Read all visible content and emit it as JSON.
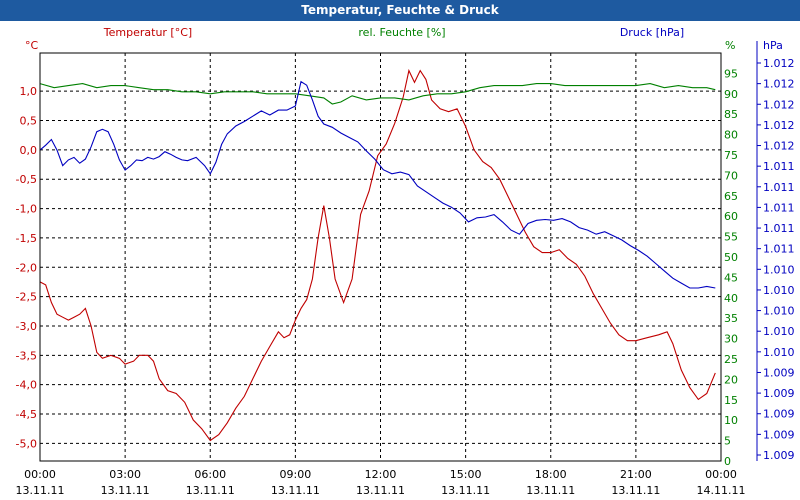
{
  "window": {
    "title": "Temperatur, Feuchte & Druck"
  },
  "colors": {
    "temperature": "#c00000",
    "humidity": "#008000",
    "pressure": "#0000c0",
    "title_bar": "#1e5aa0",
    "grid": "#000000"
  },
  "chart_data": {
    "type": "line",
    "title": "Temperatur, Feuchte & Druck",
    "legend": [
      {
        "name": "Temperatur [°C]",
        "axis": "left"
      },
      {
        "name": "rel. Feuchte [%]",
        "axis": "right-inner"
      },
      {
        "name": "Druck [hPa]",
        "axis": "right-outer"
      }
    ],
    "x_ticks": [
      {
        "time": "00:00",
        "date": "13.11.11",
        "hour": 0
      },
      {
        "time": "03:00",
        "date": "13.11.11",
        "hour": 3
      },
      {
        "time": "06:00",
        "date": "13.11.11",
        "hour": 6
      },
      {
        "time": "09:00",
        "date": "13.11.11",
        "hour": 9
      },
      {
        "time": "12:00",
        "date": "13.11.11",
        "hour": 12
      },
      {
        "time": "15:00",
        "date": "13.11.11",
        "hour": 15
      },
      {
        "time": "18:00",
        "date": "13.11.11",
        "hour": 18
      },
      {
        "time": "21:00",
        "date": "13.11.11",
        "hour": 21
      },
      {
        "time": "00:00",
        "date": "14.11.11",
        "hour": 24
      }
    ],
    "xlim": [
      0,
      24
    ],
    "axes": {
      "temperature": {
        "unit": "°C",
        "ylim": [
          -5.3,
          1.65
        ],
        "ticks": [
          "1,0",
          "0,5",
          "0,0",
          "-0,5",
          "-1,0",
          "-1,5",
          "-2,0",
          "-2,5",
          "-3,0",
          "-3,5",
          "-4,0",
          "-4,5",
          "-5,0"
        ],
        "tick_values": [
          1.0,
          0.5,
          0.0,
          -0.5,
          -1.0,
          -1.5,
          -2.0,
          -2.5,
          -3.0,
          -3.5,
          -4.0,
          -4.5,
          -5.0
        ]
      },
      "humidity": {
        "unit": "%",
        "ylim": [
          0,
          100
        ],
        "ticks": [
          "95",
          "90",
          "85",
          "80",
          "75",
          "70",
          "65",
          "60",
          "55",
          "50",
          "45",
          "40",
          "35",
          "30",
          "25",
          "20",
          "15",
          "10",
          "5",
          "0"
        ],
        "tick_values": [
          95,
          90,
          85,
          80,
          75,
          70,
          65,
          60,
          55,
          50,
          45,
          40,
          35,
          30,
          25,
          20,
          15,
          10,
          5,
          0
        ]
      },
      "pressure": {
        "unit": "hPa",
        "ticks": [
          "1.012",
          "1.012",
          "1.012",
          "1.012",
          "1.012",
          "1.011",
          "1.011",
          "1.011",
          "1.011",
          "1.011",
          "1.010",
          "1.010",
          "1.010",
          "1.010",
          "1.010",
          "1.009",
          "1.009",
          "1.009",
          "1.009",
          "1.009"
        ],
        "series_scale": [
          0,
          1
        ]
      }
    },
    "series": [
      {
        "name": "Temperatur [°C]",
        "axis": "temperature",
        "points": [
          [
            0,
            -2.25
          ],
          [
            0.2,
            -2.3
          ],
          [
            0.4,
            -2.6
          ],
          [
            0.6,
            -2.8
          ],
          [
            0.8,
            -2.85
          ],
          [
            1.0,
            -2.9
          ],
          [
            1.2,
            -2.85
          ],
          [
            1.4,
            -2.8
          ],
          [
            1.6,
            -2.7
          ],
          [
            1.8,
            -3.0
          ],
          [
            2.0,
            -3.45
          ],
          [
            2.2,
            -3.55
          ],
          [
            2.5,
            -3.5
          ],
          [
            2.8,
            -3.55
          ],
          [
            3.0,
            -3.65
          ],
          [
            3.3,
            -3.6
          ],
          [
            3.5,
            -3.5
          ],
          [
            3.8,
            -3.5
          ],
          [
            4.0,
            -3.6
          ],
          [
            4.2,
            -3.9
          ],
          [
            4.5,
            -4.1
          ],
          [
            4.8,
            -4.15
          ],
          [
            5.1,
            -4.3
          ],
          [
            5.4,
            -4.6
          ],
          [
            5.7,
            -4.75
          ],
          [
            6.0,
            -4.95
          ],
          [
            6.3,
            -4.85
          ],
          [
            6.6,
            -4.65
          ],
          [
            6.9,
            -4.4
          ],
          [
            7.2,
            -4.2
          ],
          [
            7.5,
            -3.9
          ],
          [
            7.8,
            -3.6
          ],
          [
            8.1,
            -3.35
          ],
          [
            8.4,
            -3.1
          ],
          [
            8.6,
            -3.2
          ],
          [
            8.8,
            -3.15
          ],
          [
            9.0,
            -2.9
          ],
          [
            9.2,
            -2.7
          ],
          [
            9.4,
            -2.55
          ],
          [
            9.6,
            -2.2
          ],
          [
            9.8,
            -1.5
          ],
          [
            10.0,
            -0.95
          ],
          [
            10.2,
            -1.5
          ],
          [
            10.4,
            -2.2
          ],
          [
            10.7,
            -2.6
          ],
          [
            11.0,
            -2.2
          ],
          [
            11.3,
            -1.1
          ],
          [
            11.6,
            -0.7
          ],
          [
            11.9,
            -0.1
          ],
          [
            12.2,
            0.1
          ],
          [
            12.5,
            0.45
          ],
          [
            12.8,
            0.9
          ],
          [
            13.0,
            1.35
          ],
          [
            13.2,
            1.15
          ],
          [
            13.4,
            1.35
          ],
          [
            13.6,
            1.2
          ],
          [
            13.8,
            0.85
          ],
          [
            14.1,
            0.7
          ],
          [
            14.4,
            0.65
          ],
          [
            14.7,
            0.7
          ],
          [
            15.0,
            0.4
          ],
          [
            15.3,
            0.0
          ],
          [
            15.6,
            -0.2
          ],
          [
            15.9,
            -0.3
          ],
          [
            16.2,
            -0.5
          ],
          [
            16.5,
            -0.8
          ],
          [
            16.8,
            -1.1
          ],
          [
            17.1,
            -1.4
          ],
          [
            17.4,
            -1.65
          ],
          [
            17.7,
            -1.75
          ],
          [
            18.0,
            -1.75
          ],
          [
            18.3,
            -1.7
          ],
          [
            18.6,
            -1.85
          ],
          [
            18.9,
            -1.95
          ],
          [
            19.2,
            -2.15
          ],
          [
            19.5,
            -2.45
          ],
          [
            19.8,
            -2.7
          ],
          [
            20.1,
            -2.95
          ],
          [
            20.4,
            -3.15
          ],
          [
            20.7,
            -3.25
          ],
          [
            21.0,
            -3.25
          ],
          [
            21.4,
            -3.2
          ],
          [
            21.8,
            -3.15
          ],
          [
            22.1,
            -3.1
          ],
          [
            22.3,
            -3.3
          ],
          [
            22.6,
            -3.75
          ],
          [
            22.9,
            -4.05
          ],
          [
            23.2,
            -4.25
          ],
          [
            23.5,
            -4.15
          ],
          [
            23.8,
            -3.8
          ]
        ]
      },
      {
        "name": "rel. Feuchte [%]",
        "axis": "humidity",
        "points": [
          [
            0,
            92.5
          ],
          [
            0.5,
            91.5
          ],
          [
            1.0,
            92
          ],
          [
            1.5,
            92.5
          ],
          [
            2.0,
            91.5
          ],
          [
            2.5,
            92
          ],
          [
            3.0,
            92
          ],
          [
            3.5,
            91.5
          ],
          [
            4.0,
            91
          ],
          [
            4.5,
            91
          ],
          [
            5.0,
            90.5
          ],
          [
            5.5,
            90.5
          ],
          [
            6.0,
            90
          ],
          [
            6.5,
            90.5
          ],
          [
            7.0,
            90.5
          ],
          [
            7.5,
            90.5
          ],
          [
            8.0,
            90
          ],
          [
            8.5,
            90
          ],
          [
            9.0,
            90
          ],
          [
            9.5,
            89.5
          ],
          [
            10.0,
            89
          ],
          [
            10.3,
            87.5
          ],
          [
            10.6,
            88
          ],
          [
            11.0,
            89.5
          ],
          [
            11.5,
            88.5
          ],
          [
            12.0,
            89
          ],
          [
            12.5,
            89
          ],
          [
            13.0,
            88.5
          ],
          [
            13.5,
            89.5
          ],
          [
            14.0,
            90
          ],
          [
            14.5,
            90
          ],
          [
            15.0,
            90.5
          ],
          [
            15.5,
            91.5
          ],
          [
            16.0,
            92
          ],
          [
            16.5,
            92
          ],
          [
            17.0,
            92
          ],
          [
            17.5,
            92.5
          ],
          [
            18.0,
            92.5
          ],
          [
            18.5,
            92
          ],
          [
            19.0,
            92
          ],
          [
            19.5,
            92
          ],
          [
            20.0,
            92
          ],
          [
            20.5,
            92
          ],
          [
            21.0,
            92
          ],
          [
            21.5,
            92.5
          ],
          [
            22.0,
            91.5
          ],
          [
            22.5,
            92
          ],
          [
            23.0,
            91.5
          ],
          [
            23.5,
            91.5
          ],
          [
            23.8,
            91
          ]
        ]
      },
      {
        "name": "Druck [hPa]",
        "axis": "pressure",
        "points": [
          [
            0,
            0.762
          ],
          [
            0.2,
            0.774
          ],
          [
            0.4,
            0.788
          ],
          [
            0.6,
            0.762
          ],
          [
            0.8,
            0.724
          ],
          [
            1.0,
            0.738
          ],
          [
            1.2,
            0.744
          ],
          [
            1.4,
            0.73
          ],
          [
            1.6,
            0.74
          ],
          [
            1.8,
            0.77
          ],
          [
            2.0,
            0.807
          ],
          [
            2.2,
            0.813
          ],
          [
            2.4,
            0.807
          ],
          [
            2.6,
            0.776
          ],
          [
            2.8,
            0.738
          ],
          [
            3.0,
            0.713
          ],
          [
            3.2,
            0.724
          ],
          [
            3.4,
            0.738
          ],
          [
            3.6,
            0.736
          ],
          [
            3.8,
            0.744
          ],
          [
            4.0,
            0.74
          ],
          [
            4.2,
            0.746
          ],
          [
            4.4,
            0.758
          ],
          [
            4.6,
            0.752
          ],
          [
            4.8,
            0.744
          ],
          [
            5.0,
            0.738
          ],
          [
            5.2,
            0.736
          ],
          [
            5.5,
            0.744
          ],
          [
            5.8,
            0.724
          ],
          [
            6.0,
            0.704
          ],
          [
            6.2,
            0.732
          ],
          [
            6.4,
            0.776
          ],
          [
            6.6,
            0.802
          ],
          [
            6.9,
            0.821
          ],
          [
            7.2,
            0.832
          ],
          [
            7.5,
            0.845
          ],
          [
            7.8,
            0.858
          ],
          [
            8.1,
            0.848
          ],
          [
            8.4,
            0.86
          ],
          [
            8.7,
            0.86
          ],
          [
            9.0,
            0.87
          ],
          [
            9.2,
            0.93
          ],
          [
            9.4,
            0.921
          ],
          [
            9.6,
            0.885
          ],
          [
            9.8,
            0.845
          ],
          [
            10.0,
            0.826
          ],
          [
            10.3,
            0.818
          ],
          [
            10.6,
            0.804
          ],
          [
            10.9,
            0.793
          ],
          [
            11.2,
            0.782
          ],
          [
            11.5,
            0.76
          ],
          [
            11.8,
            0.74
          ],
          [
            12.1,
            0.714
          ],
          [
            12.4,
            0.704
          ],
          [
            12.7,
            0.708
          ],
          [
            13.0,
            0.702
          ],
          [
            13.3,
            0.674
          ],
          [
            13.6,
            0.66
          ],
          [
            13.9,
            0.646
          ],
          [
            14.2,
            0.632
          ],
          [
            14.5,
            0.622
          ],
          [
            14.8,
            0.608
          ],
          [
            15.1,
            0.586
          ],
          [
            15.4,
            0.596
          ],
          [
            15.7,
            0.598
          ],
          [
            16.0,
            0.604
          ],
          [
            16.3,
            0.586
          ],
          [
            16.6,
            0.566
          ],
          [
            16.9,
            0.556
          ],
          [
            17.2,
            0.582
          ],
          [
            17.5,
            0.59
          ],
          [
            17.8,
            0.592
          ],
          [
            18.1,
            0.59
          ],
          [
            18.4,
            0.594
          ],
          [
            18.7,
            0.586
          ],
          [
            19.0,
            0.572
          ],
          [
            19.3,
            0.566
          ],
          [
            19.6,
            0.556
          ],
          [
            19.9,
            0.562
          ],
          [
            20.2,
            0.552
          ],
          [
            20.5,
            0.542
          ],
          [
            20.8,
            0.528
          ],
          [
            21.1,
            0.516
          ],
          [
            21.4,
            0.502
          ],
          [
            21.7,
            0.484
          ],
          [
            22.0,
            0.466
          ],
          [
            22.3,
            0.448
          ],
          [
            22.6,
            0.436
          ],
          [
            22.9,
            0.424
          ],
          [
            23.2,
            0.424
          ],
          [
            23.5,
            0.428
          ],
          [
            23.8,
            0.424
          ]
        ]
      }
    ]
  }
}
